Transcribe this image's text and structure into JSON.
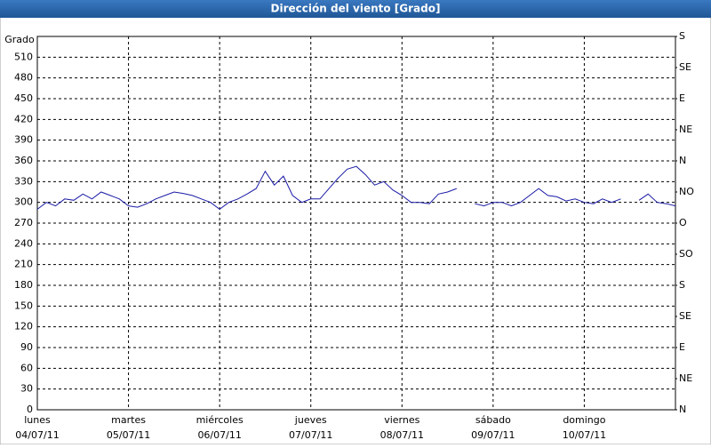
{
  "chart_data": {
    "type": "line",
    "title": "Dirección del viento [Grado]",
    "y_label": "Grado",
    "xlim": [
      0,
      7
    ],
    "xticks": [
      {
        "value": 0,
        "label": "lunes"
      },
      {
        "value": 1,
        "label": "martes"
      },
      {
        "value": 2,
        "label": "miércoles"
      },
      {
        "value": 3,
        "label": "jueves"
      },
      {
        "value": 4,
        "label": "viernes"
      },
      {
        "value": 5,
        "label": "sábado"
      },
      {
        "value": 6,
        "label": "domingo"
      }
    ],
    "xtick_dates": [
      "04/07/11",
      "05/07/11",
      "06/07/11",
      "07/07/11",
      "08/07/11",
      "09/07/11",
      "10/07/11"
    ],
    "ylim": [
      0,
      540
    ],
    "yticks": [
      0,
      30,
      60,
      90,
      120,
      150,
      180,
      210,
      240,
      270,
      300,
      330,
      360,
      390,
      420,
      450,
      480,
      510
    ],
    "y2lim": [
      0,
      540
    ],
    "y2ticks": [
      {
        "value": 0,
        "label": "N"
      },
      {
        "value": 45,
        "label": "NE"
      },
      {
        "value": 90,
        "label": "E"
      },
      {
        "value": 135,
        "label": "SE"
      },
      {
        "value": 180,
        "label": "S"
      },
      {
        "value": 225,
        "label": "SO"
      },
      {
        "value": 270,
        "label": "O"
      },
      {
        "value": 315,
        "label": "NO"
      },
      {
        "value": 360,
        "label": "N"
      },
      {
        "value": 405,
        "label": "NE"
      },
      {
        "value": 450,
        "label": "E"
      },
      {
        "value": 495,
        "label": "SE"
      },
      {
        "value": 540,
        "label": "S"
      }
    ],
    "grid": true,
    "color": "#1a1aa6",
    "x": [
      0,
      0.1,
      0.2,
      0.3,
      0.4,
      0.5,
      0.6,
      0.7,
      0.8,
      0.9,
      1,
      1.1,
      1.2,
      1.3,
      1.4,
      1.5,
      1.6,
      1.7,
      1.8,
      1.9,
      2,
      2.1,
      2.2,
      2.3,
      2.4,
      2.5,
      2.6,
      2.7,
      2.8,
      2.9,
      3,
      3.1,
      3.2,
      3.3,
      3.4,
      3.5,
      3.6,
      3.7,
      3.8,
      3.9,
      4,
      4.1,
      4.2,
      4.3,
      4.4,
      4.5,
      4.6,
      4.7,
      4.8,
      4.9,
      5,
      5.1,
      5.2,
      5.3,
      5.4,
      5.5,
      5.6,
      5.7,
      5.8,
      5.9,
      6,
      6.1,
      6.2,
      6.3,
      6.4,
      6.5,
      6.6,
      6.7,
      6.8,
      6.9,
      7
    ],
    "values": [
      290,
      300,
      295,
      305,
      303,
      312,
      305,
      315,
      310,
      305,
      295,
      293,
      298,
      305,
      310,
      315,
      313,
      310,
      305,
      300,
      290,
      300,
      305,
      312,
      320,
      345,
      325,
      338,
      310,
      300,
      305,
      305,
      320,
      335,
      348,
      352,
      340,
      325,
      330,
      318,
      310,
      300,
      300,
      298,
      312,
      315,
      320,
      null,
      298,
      295,
      300,
      300,
      295,
      300,
      310,
      320,
      310,
      308,
      302,
      305,
      300,
      298,
      305,
      300,
      305,
      null,
      303,
      312,
      300,
      298,
      295
    ]
  }
}
